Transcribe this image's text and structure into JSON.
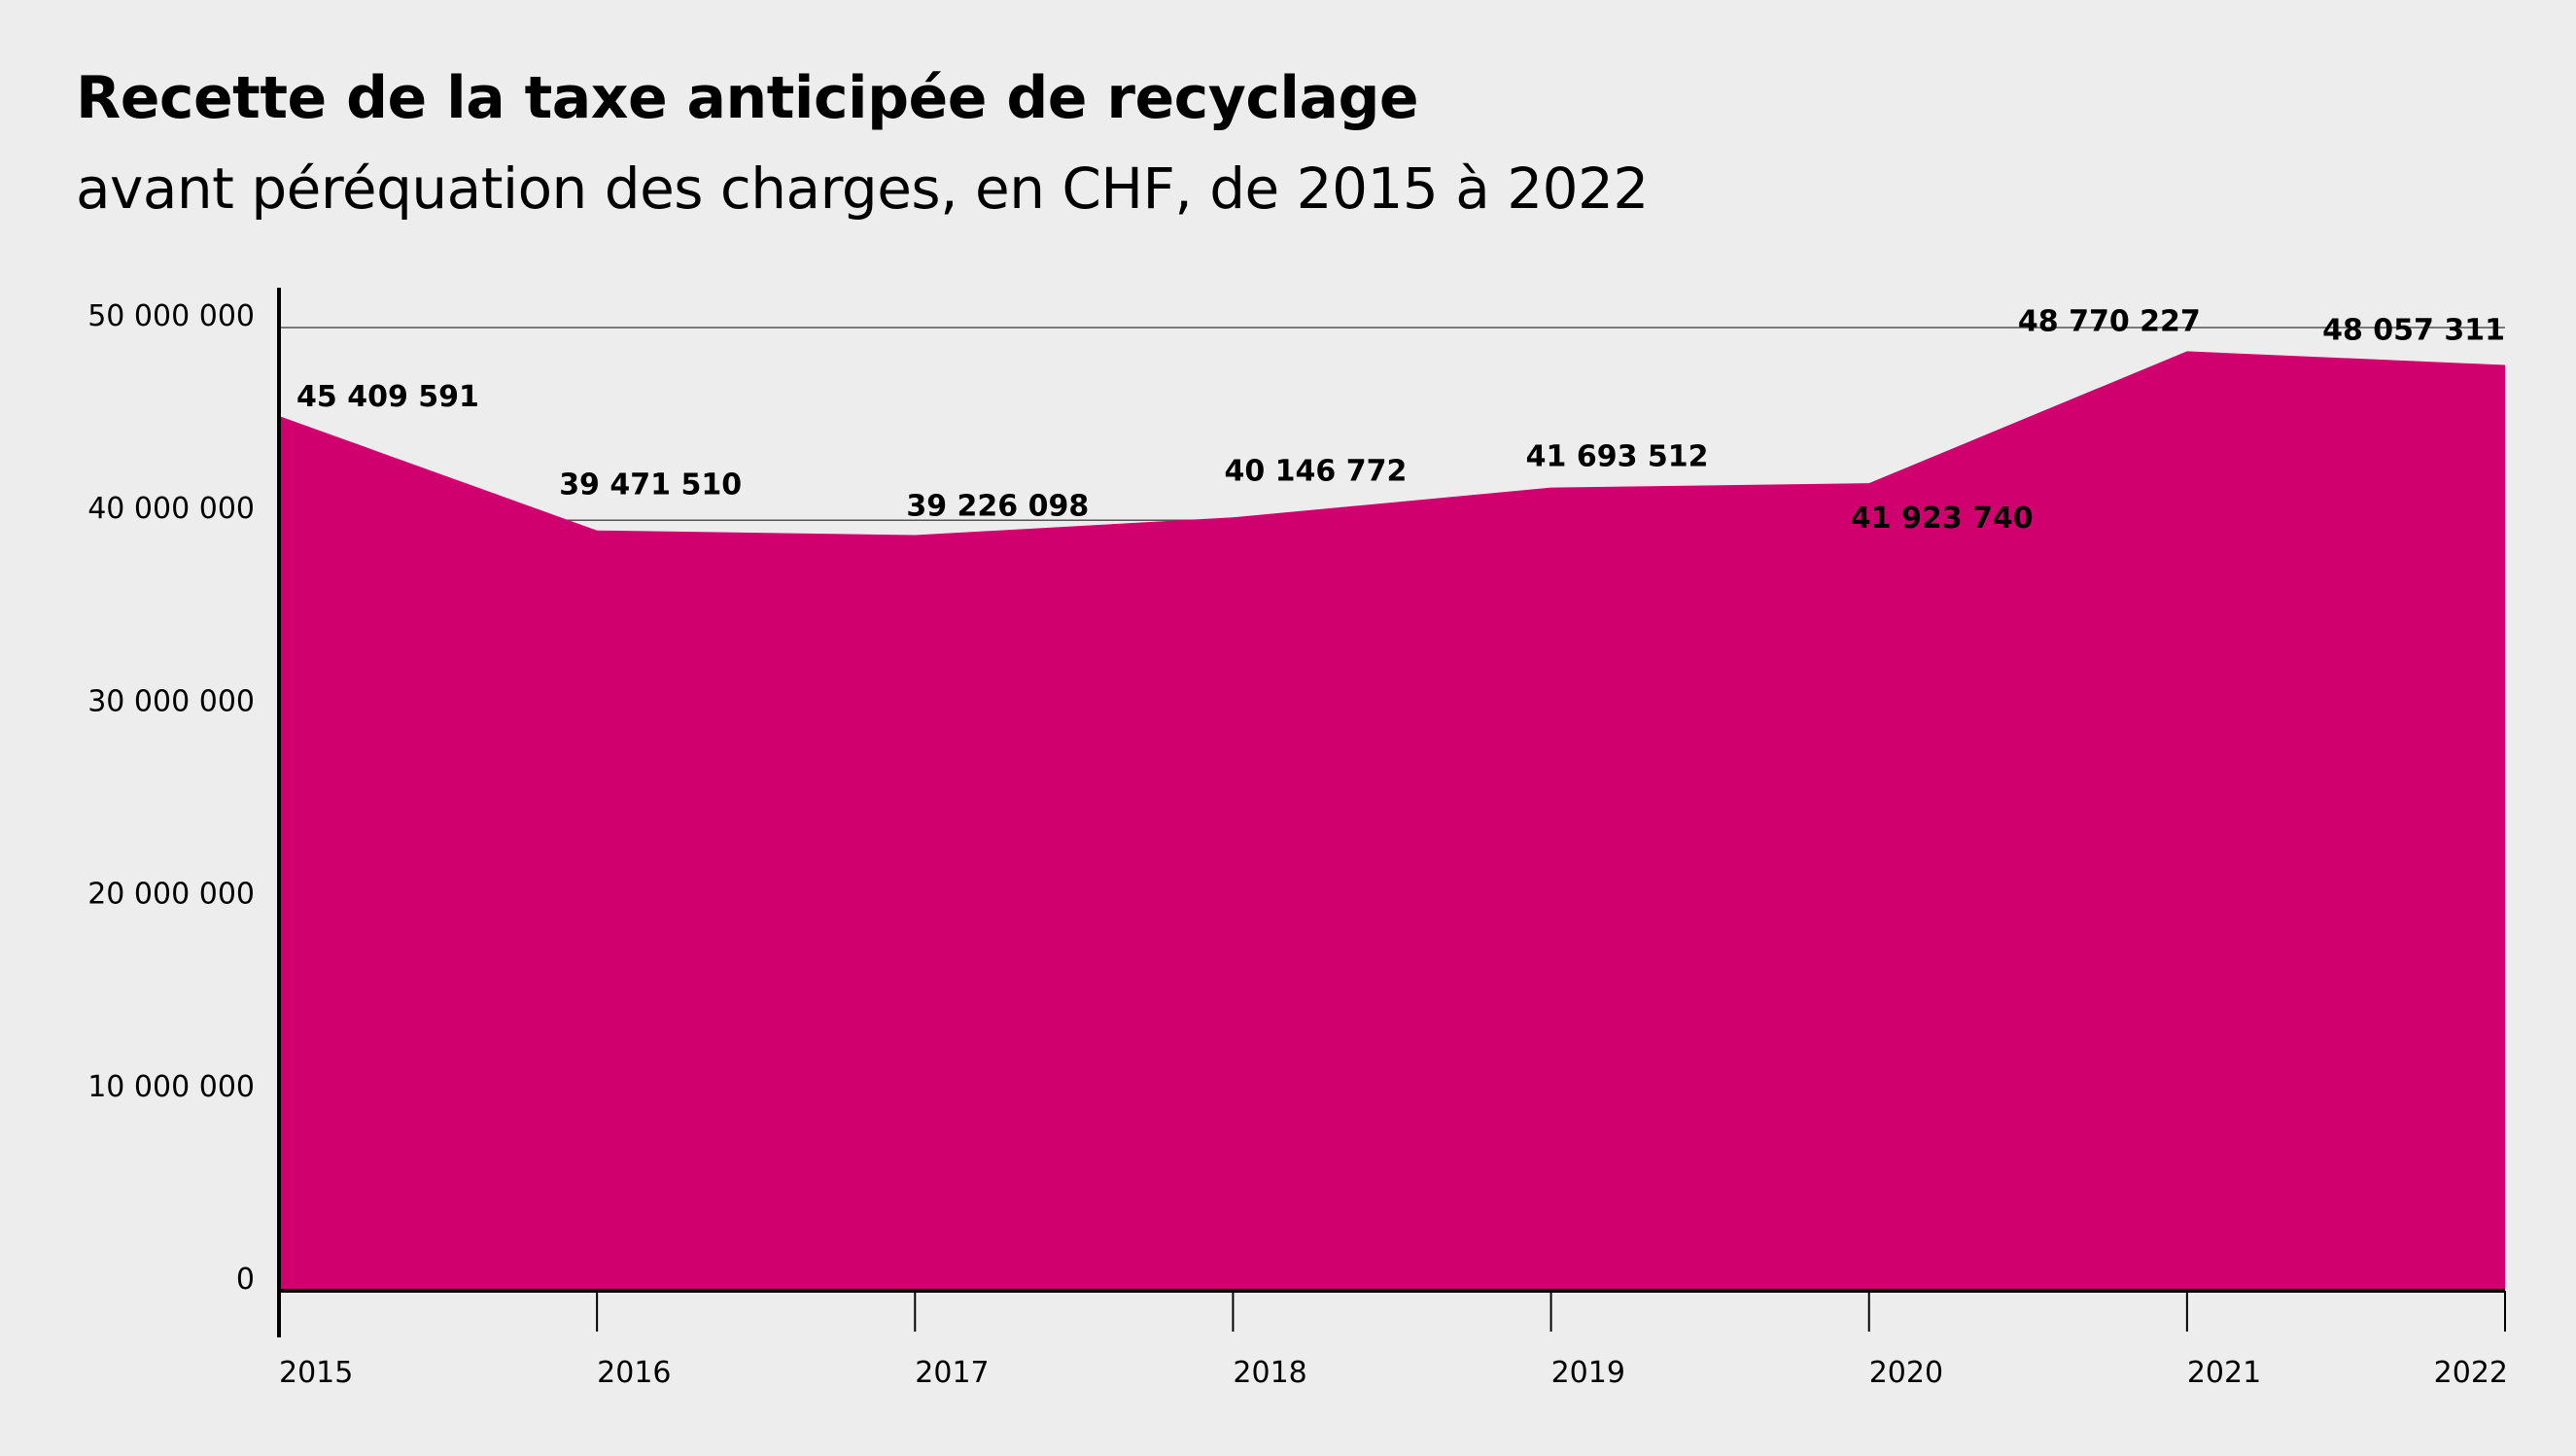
{
  "chart_data": {
    "type": "area",
    "title": "Recette de la taxe anticipée de recyclage",
    "subtitle": "avant péréquation des charges, en CHF, de 2015 à 2022",
    "xlabel": "",
    "ylabel": "",
    "x": [
      "2015",
      "2016",
      "2017",
      "2018",
      "2019",
      "2020",
      "2021",
      "2022"
    ],
    "values": [
      45409591,
      39471510,
      39226098,
      40146772,
      41693512,
      41923740,
      48770227,
      48057311
    ],
    "data_labels": [
      "45 409 591",
      "39 471 510",
      "39 226 098",
      "40 146 772",
      "41 693 512",
      "41 923 740",
      "48 770 227",
      "48 057 311"
    ],
    "ylim": [
      0,
      50000000
    ],
    "y_ticks": [
      0,
      10000000,
      20000000,
      30000000,
      40000000,
      50000000
    ],
    "y_tick_labels": [
      "0",
      "10 000 000",
      "20 000 000",
      "30 000 000",
      "40 000 000",
      "50 000 000"
    ],
    "grid": true,
    "colors": {
      "area": "#d0006f",
      "background": "#ededed",
      "grid": "#555555",
      "axis": "#000000"
    }
  }
}
